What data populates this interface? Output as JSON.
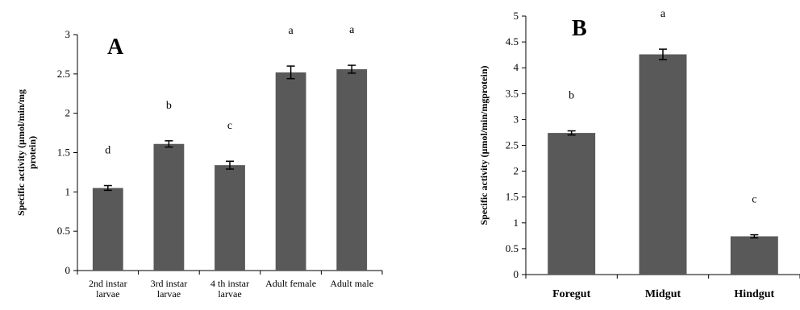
{
  "chart_data": [
    {
      "type": "bar",
      "panel_label": "A",
      "ylabel_lines": [
        "Specific activity (µmol/min/mg",
        "protein)"
      ],
      "ylim": [
        0,
        3
      ],
      "yticks": [
        "0",
        "0.5",
        "1",
        "1.5",
        "2",
        "2.5",
        "3"
      ],
      "categories": [
        [
          "2nd instar",
          "larvae"
        ],
        [
          "3rd instar",
          "larvae"
        ],
        [
          "4 th instar",
          "larvae"
        ],
        [
          "Adult female"
        ],
        [
          "Adult male"
        ]
      ],
      "values": [
        1.05,
        1.61,
        1.34,
        2.52,
        2.56
      ],
      "errors": [
        0.03,
        0.04,
        0.05,
        0.08,
        0.05
      ],
      "letters": [
        "d",
        "b",
        "c",
        "a",
        "a"
      ],
      "colors": {
        "bar": "#595959"
      }
    },
    {
      "type": "bar",
      "panel_label": "B",
      "ylabel_lines": [
        "Specific activity (µmol/min/mgprotein)"
      ],
      "ylim": [
        0,
        5
      ],
      "yticks": [
        "0",
        "0.5",
        "1",
        "1.5",
        "2",
        "2.5",
        "3",
        "3.5",
        "4",
        "4.5",
        "5"
      ],
      "categories": [
        [
          "Foregut"
        ],
        [
          "Midgut"
        ],
        [
          "Hindgut"
        ]
      ],
      "values": [
        2.74,
        4.26,
        0.74
      ],
      "errors": [
        0.04,
        0.1,
        0.03
      ],
      "letters": [
        "b",
        "a",
        "c"
      ],
      "colors": {
        "bar": "#595959"
      }
    }
  ]
}
